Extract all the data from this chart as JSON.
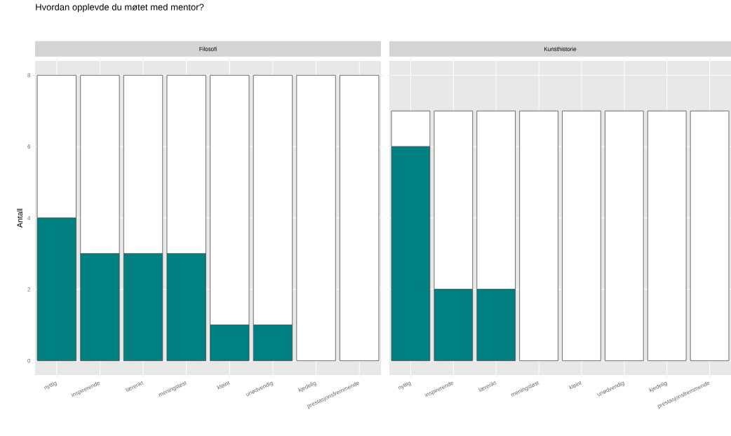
{
  "chart_data": [
    {
      "type": "bar",
      "title": "Hvordan opplevde du møtet med mentor?",
      "subtitle": "Filosofi",
      "ylabel": "Antall",
      "stacked": true,
      "grid": true,
      "categories": [
        "nyttig",
        "inspirerende",
        "lærerikt",
        "meningsløst",
        "kleint",
        "unødvendig",
        "kjedelig",
        "prestasjonsfremmende"
      ],
      "series": [
        {
          "color": "#008080",
          "values": [
            4,
            3,
            3,
            3,
            1,
            1,
            0,
            0
          ]
        },
        {
          "color": "#ffffff",
          "values": [
            4,
            5,
            5,
            5,
            7,
            7,
            8,
            8
          ]
        }
      ],
      "ylim": [
        -0.4,
        8.4
      ],
      "yticks": [
        0,
        2,
        4,
        6,
        8
      ]
    },
    {
      "type": "bar",
      "subtitle": "Kunsthistorie",
      "stacked": true,
      "grid": true,
      "tick_labels": "x",
      "categories": [
        "nyttig",
        "inspirerende",
        "lærerikt",
        "meningsløst",
        "kleint",
        "unødvendig",
        "kjedelig",
        "prestasjonsfremmende"
      ],
      "series": [
        {
          "color": "#008080",
          "values": [
            6,
            2,
            2,
            0,
            0,
            0,
            0,
            0
          ]
        },
        {
          "color": "#ffffff",
          "values": [
            1,
            5,
            5,
            7,
            7,
            7,
            7,
            7
          ]
        }
      ],
      "ylim": [
        -0.4,
        8.4
      ],
      "yticks": [
        0,
        2,
        4,
        6,
        8
      ]
    }
  ]
}
